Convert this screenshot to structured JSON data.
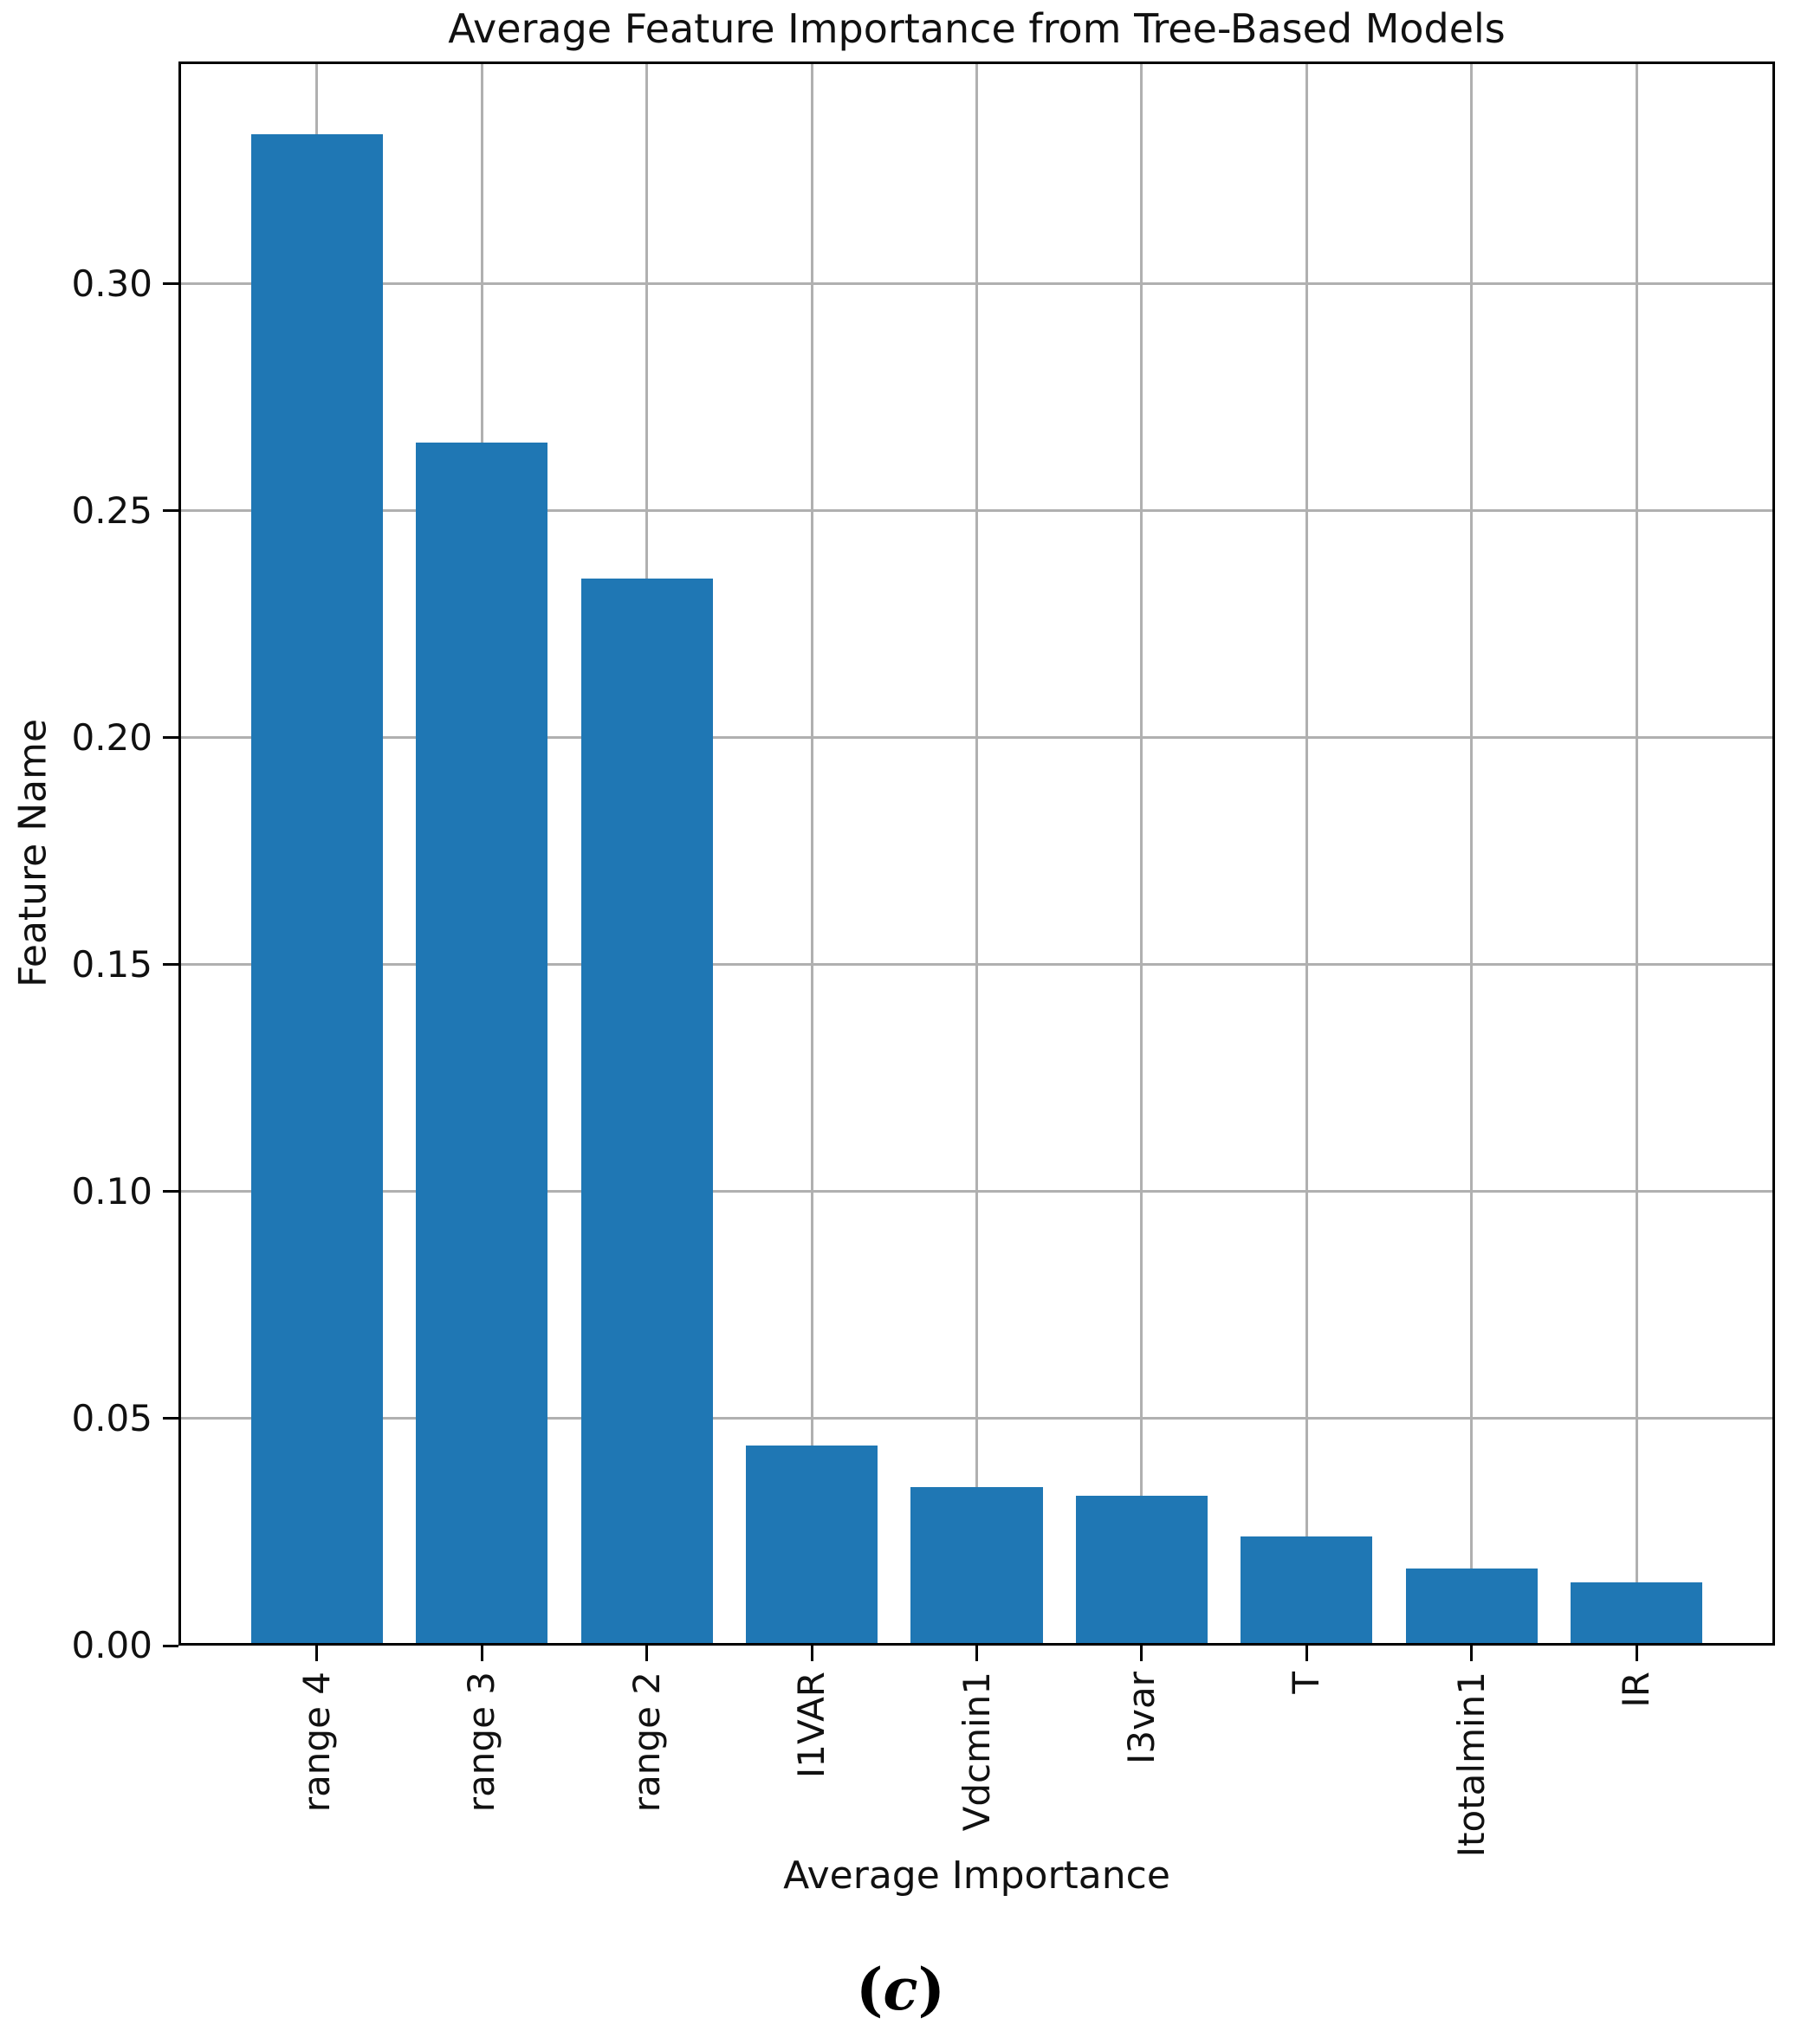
{
  "chart_data": {
    "type": "bar",
    "title": "Average Feature Importance from Tree-Based Models",
    "xlabel": "Average Importance",
    "ylabel": "Feature Name",
    "categories": [
      "range 4",
      "range 3",
      "range 2",
      "I1VAR",
      "Vdcmin1",
      "I3var",
      "T",
      "Itotalmin1",
      "IR"
    ],
    "values": [
      0.333,
      0.265,
      0.235,
      0.044,
      0.035,
      0.033,
      0.024,
      0.017,
      0.014
    ],
    "yticks": [
      0.0,
      0.05,
      0.1,
      0.15,
      0.2,
      0.25,
      0.3
    ],
    "ytick_labels": [
      "0.00",
      "0.05",
      "0.10",
      "0.15",
      "0.20",
      "0.25",
      "0.30"
    ],
    "ylim": [
      0,
      0.349
    ],
    "grid": true,
    "legend_position": "none",
    "x_tick_rotation": 90,
    "bar_color": "#1f77b4",
    "grid_color": "#b0b0b0",
    "spine_color": "#000000"
  },
  "caption": {
    "open": "(",
    "letter": "c",
    "close": ")"
  }
}
